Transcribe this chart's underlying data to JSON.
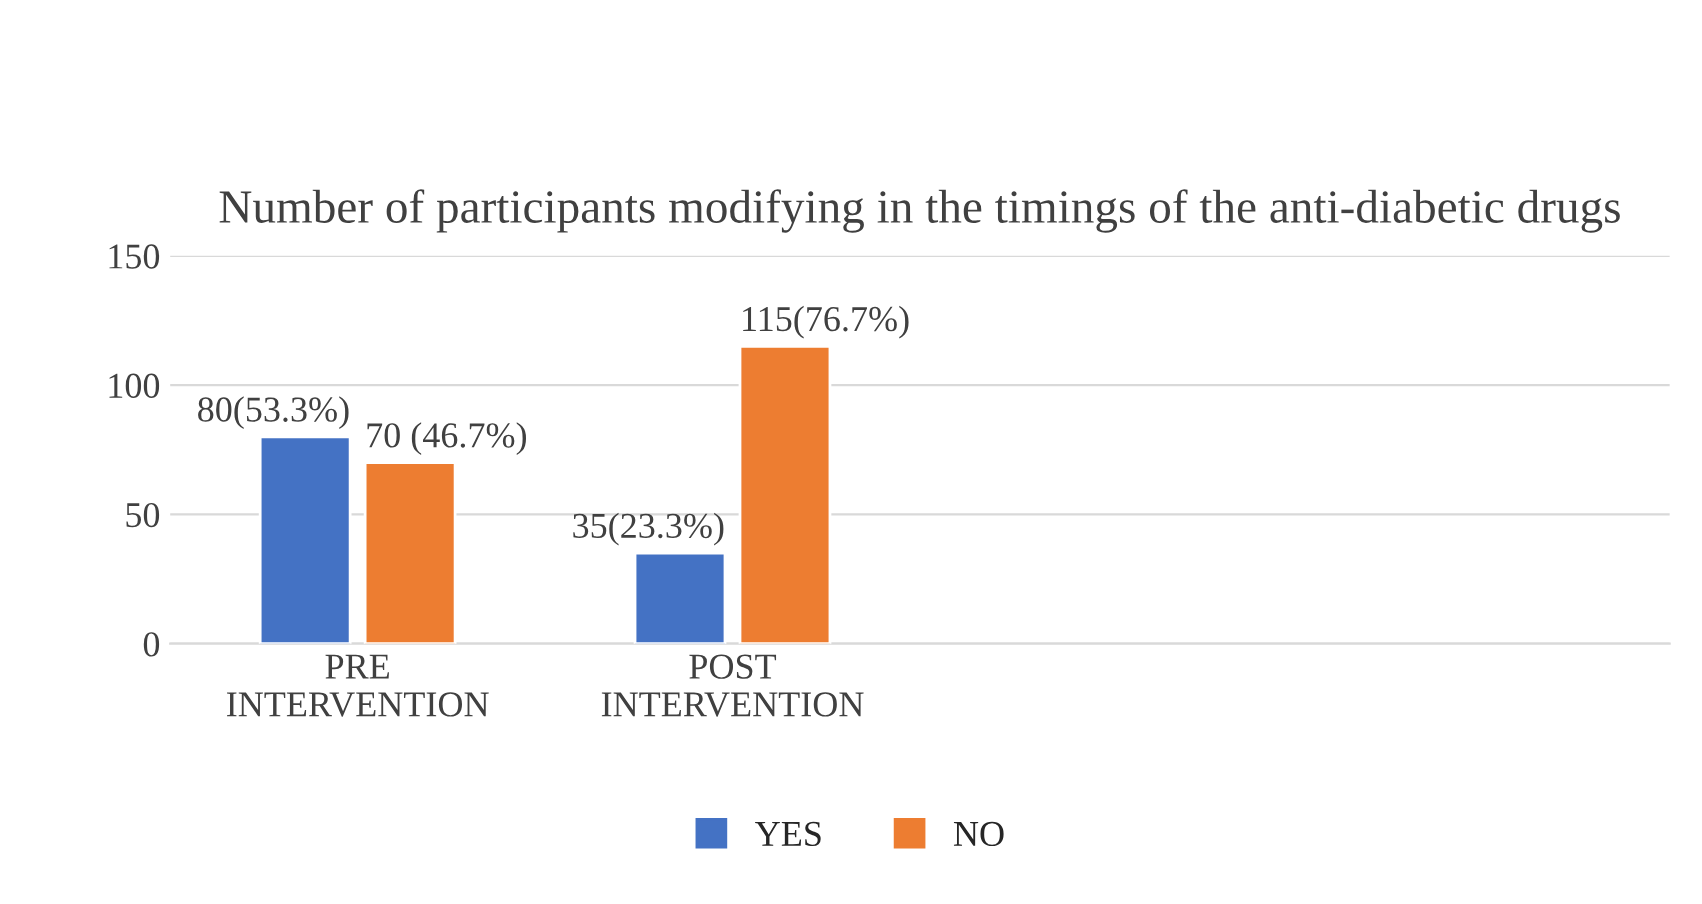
{
  "chart_data": {
    "type": "bar",
    "title": "Number of participants modifying in the timings of the anti-diabetic drugs",
    "categories": [
      "PRE\nINTERVENTION",
      "POST\nINTERVENTION",
      null,
      null
    ],
    "series": [
      {
        "name": "YES",
        "color": "#4472c4",
        "values": [
          80,
          35,
          null,
          null
        ],
        "value_labels": [
          "80(53.3%)",
          "35(23.3%)",
          null,
          null
        ]
      },
      {
        "name": "NO",
        "color": "#ed7d31",
        "values": [
          70,
          115,
          null,
          null
        ],
        "value_labels": [
          "70 (46.7%)",
          "115(76.7%)",
          null,
          null
        ]
      }
    ],
    "ylim": [
      0,
      150
    ],
    "yticks": [
      0,
      50,
      100,
      150
    ],
    "grid": "y",
    "legend": "bottom"
  }
}
